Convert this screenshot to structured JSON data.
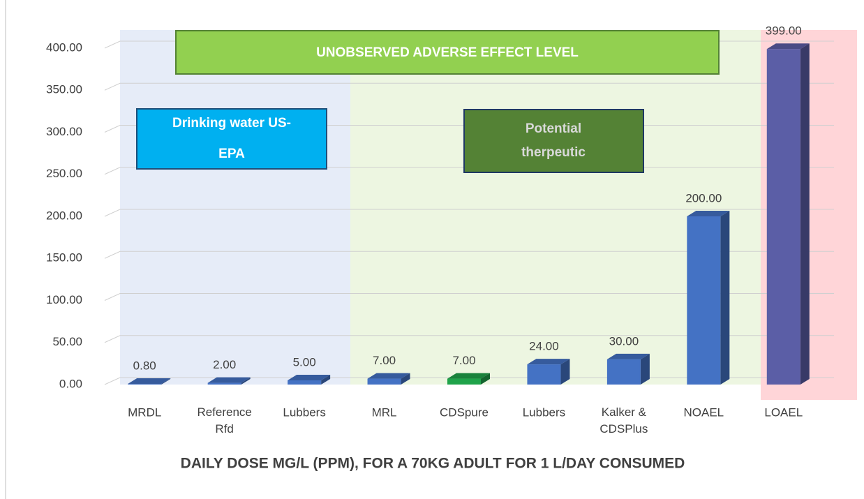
{
  "chart_data": {
    "type": "bar",
    "x_axis_label": "DAILY DOSE MG/L (PPM), FOR A 70KG ADULT FOR 1 L/DAY CONSUMED",
    "categories": [
      "MRDL",
      "Reference Rfd",
      "Lubbers",
      "MRL",
      "CDSpure",
      "Lubbers",
      "Kalker & CDSPlus",
      "NOAEL",
      "LOAEL"
    ],
    "values": [
      0.8,
      2,
      5,
      7,
      7,
      24,
      30,
      200,
      399
    ],
    "value_labels": [
      "0.80",
      "2.00",
      "5.00",
      "7.00",
      "7.00",
      "24.00",
      "30.00",
      "200.00",
      "399.00"
    ],
    "colors": [
      "#4472c4",
      "#4472c4",
      "#4472c4",
      "#4472c4",
      "#1fa34a",
      "#4472c4",
      "#4472c4",
      "#4472c4",
      "#5b5ea6"
    ],
    "ylim": [
      0,
      420
    ],
    "yticks": [
      {
        "value": 0,
        "label": "0.00"
      },
      {
        "value": 50,
        "label": "50.00"
      },
      {
        "value": 100,
        "label": "100.00"
      },
      {
        "value": 150,
        "label": "150.00"
      },
      {
        "value": 200,
        "label": "200.00"
      },
      {
        "value": 250,
        "label": "250.00"
      },
      {
        "value": 300,
        "label": "300.00"
      },
      {
        "value": 350,
        "label": "350.00"
      },
      {
        "value": 400,
        "label": "400.00"
      }
    ],
    "grid": true,
    "annotations": [
      "UNOBSERVED ADVERSE EFFECT LEVEL",
      "Drinking water US-EPA",
      "Potential therpeutic"
    ]
  }
}
